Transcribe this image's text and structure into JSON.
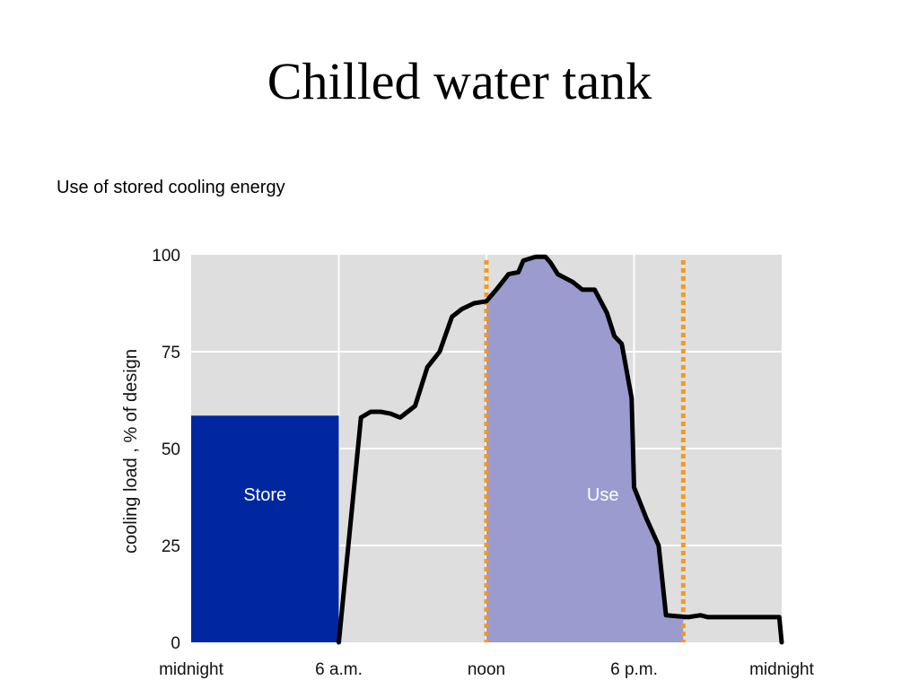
{
  "slide": {
    "title": "Chilled water tank",
    "subtitle": "Use of stored cooling energy"
  },
  "chart_data": {
    "type": "area",
    "title": "",
    "xlabel": "",
    "ylabel": "cooling load , % of design",
    "x_unit": "hour of day",
    "xlim": [
      0,
      24
    ],
    "ylim": [
      0,
      100
    ],
    "grid": true,
    "x_ticks": [
      {
        "value": 0,
        "label": "midnight"
      },
      {
        "value": 6,
        "label": "6 a.m."
      },
      {
        "value": 12,
        "label": "noon"
      },
      {
        "value": 18,
        "label": "6 p.m."
      },
      {
        "value": 24,
        "label": "midnight"
      }
    ],
    "y_ticks": [
      0,
      25,
      50,
      75,
      100
    ],
    "series": [
      {
        "values": [
          [
            6.0,
            0
          ],
          [
            6.9,
            58
          ],
          [
            7.3,
            59.5
          ],
          [
            7.7,
            59.5
          ],
          [
            8.1,
            59
          ],
          [
            8.5,
            58
          ],
          [
            9.1,
            61
          ],
          [
            9.6,
            71
          ],
          [
            10.1,
            75
          ],
          [
            10.6,
            84
          ],
          [
            11.0,
            86
          ],
          [
            11.5,
            87.5
          ],
          [
            12.0,
            88
          ],
          [
            12.4,
            91
          ],
          [
            12.9,
            95
          ],
          [
            13.3,
            95.5
          ],
          [
            13.5,
            98.5
          ],
          [
            14.0,
            99.5
          ],
          [
            14.4,
            99.5
          ],
          [
            14.6,
            98
          ],
          [
            14.9,
            95
          ],
          [
            15.5,
            93
          ],
          [
            15.9,
            91
          ],
          [
            16.4,
            91
          ],
          [
            16.9,
            85
          ],
          [
            17.2,
            79
          ],
          [
            17.5,
            77
          ],
          [
            17.7,
            70
          ],
          [
            17.9,
            63
          ],
          [
            18.0,
            40
          ],
          [
            18.5,
            32
          ],
          [
            19.0,
            25
          ],
          [
            19.3,
            7
          ],
          [
            20.2,
            6.5
          ],
          [
            20.7,
            7
          ],
          [
            21.0,
            6.5
          ],
          [
            22.0,
            6.5
          ],
          [
            23.9,
            6.5
          ],
          [
            24.0,
            0
          ]
        ]
      }
    ],
    "regions": [
      {
        "label": "Store",
        "x_start": 0,
        "x_end": 6,
        "y_top": 58.5,
        "color": "#0027a0"
      },
      {
        "label": "Use",
        "x_start": 12,
        "x_end": 20,
        "color": "#9b9bd0"
      }
    ],
    "reference_lines": [
      {
        "x": 12,
        "color": "#f39a1e",
        "style": "dotted"
      },
      {
        "x": 20,
        "color": "#f39a1e",
        "style": "dotted"
      }
    ],
    "colors": {
      "plot_background": "#dedede",
      "grid": "#ffffff",
      "curve": "#000000"
    }
  }
}
